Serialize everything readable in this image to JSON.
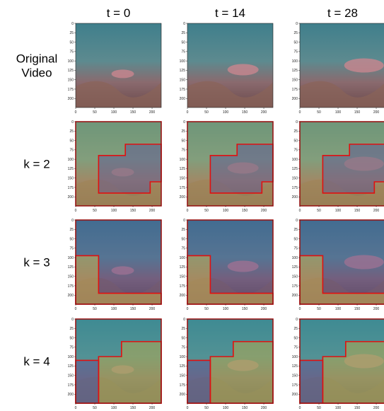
{
  "columns": [
    "t = 0",
    "t = 14",
    "t = 28"
  ],
  "rows": [
    "Original\nVideo",
    "k = 2",
    "k = 3",
    "k = 4"
  ],
  "axes": {
    "xlim": [
      0,
      224
    ],
    "ylim": [
      224,
      0
    ],
    "xticks": [
      0,
      50,
      100,
      150,
      200
    ],
    "yticks": [
      0,
      25,
      50,
      75,
      100,
      125,
      150,
      175,
      200
    ]
  }
}
